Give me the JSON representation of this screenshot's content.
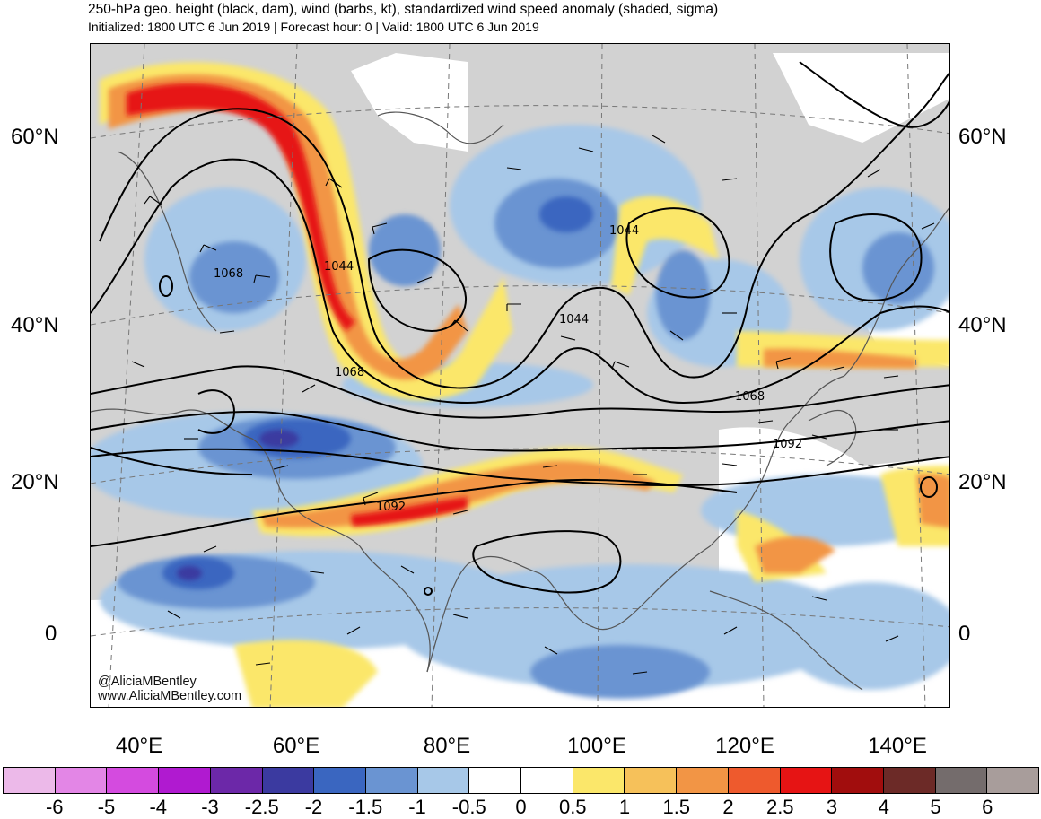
{
  "header": {
    "title": "250-hPa geo. height (black, dam), wind (barbs, kt), standardized wind speed anomaly (shaded, sigma)",
    "subtitle": "Initialized: 1800 UTC 6 Jun 2019 | Forecast hour: 0 | Valid: 1800 UTC 6 Jun 2019"
  },
  "map": {
    "lat_labels_left": [
      "60°N",
      "40°N",
      "20°N",
      "0"
    ],
    "lat_labels_right": [
      "60°N",
      "40°N",
      "20°N",
      "0"
    ],
    "lon_labels": [
      "40°E",
      "60°E",
      "80°E",
      "100°E",
      "120°E",
      "140°E"
    ],
    "contour_labels": [
      "1068",
      "1044",
      "1044",
      "1044",
      "1068",
      "1068",
      "1092",
      "1092"
    ],
    "credit_handle": "@AliciaMBentley",
    "credit_url": "www.AliciaMBentley.com",
    "land_color": "#d2d2d2"
  },
  "colorbar": {
    "ticks": [
      "-6",
      "-5",
      "-4",
      "-3",
      "-2.5",
      "-2",
      "-1.5",
      "-1",
      "-0.5",
      "0",
      "0.5",
      "1",
      "1.5",
      "2",
      "2.5",
      "3",
      "4",
      "5",
      "6"
    ],
    "colors": [
      "#ecb9e9",
      "#e386e6",
      "#d44bdf",
      "#b01ad0",
      "#6c28a8",
      "#3b3aa0",
      "#3a66c0",
      "#6a94d2",
      "#a7c8e8",
      "#ffffff",
      "#ffffff",
      "#fbe76a",
      "#f6c15a",
      "#f29545",
      "#ee5a2d",
      "#e61414",
      "#a10d0d",
      "#6c2a27",
      "#746c6c",
      "#a89d9b"
    ]
  }
}
